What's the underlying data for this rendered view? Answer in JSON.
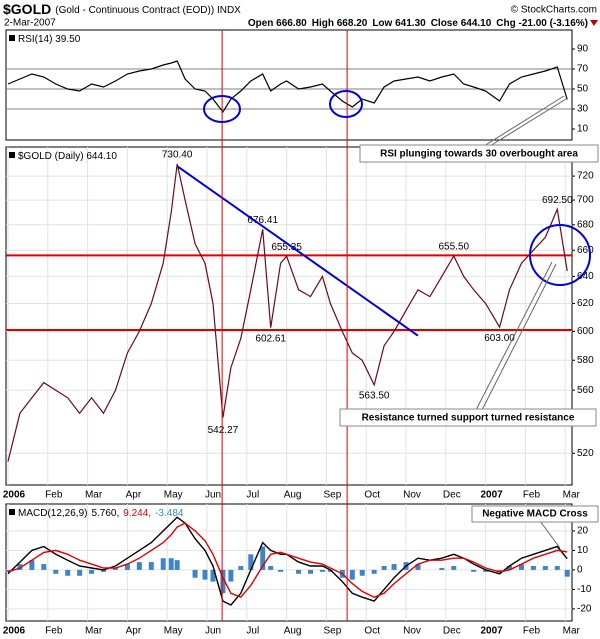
{
  "header": {
    "symbol": "$GOLD",
    "description": "(Gold - Continuous Contract (EOD)) INDX",
    "date": "2-Mar-2007",
    "quote": [
      "Open 666.80",
      "High 668.20",
      "Low 641.30",
      "Close 644.10",
      "Chg -21.00 (-3.16%)"
    ],
    "copyright": "© StockCharts.com"
  },
  "callouts": [
    "RSI plunging towards 30 overbought area",
    "Resistance turned support turned resistance",
    "Negative MACD Cross"
  ],
  "chart_data": [
    {
      "type": "line",
      "title": "RSI(14) 39.50",
      "color": "#000000",
      "x": [
        0.0,
        0.3,
        0.6,
        0.9,
        1.2,
        1.5,
        1.8,
        2.1,
        2.4,
        2.7,
        3.0,
        3.3,
        3.6,
        3.9,
        4.1,
        4.25,
        4.45,
        4.7,
        4.95,
        5.15,
        5.4,
        5.6,
        5.85,
        6.1,
        6.4,
        6.6,
        6.85,
        7.0,
        7.3,
        7.6,
        7.9,
        8.1,
        8.4,
        8.65,
        8.9,
        9.2,
        9.45,
        9.7,
        10.0,
        10.3,
        10.6,
        10.9,
        11.2,
        11.45,
        11.7,
        12.0,
        12.35,
        12.6,
        12.9,
        13.2,
        13.5,
        13.8,
        14.05
      ],
      "values": [
        55,
        60,
        65,
        62,
        55,
        50,
        48,
        55,
        52,
        58,
        65,
        68,
        70,
        74,
        76,
        78,
        60,
        50,
        48,
        40,
        27,
        40,
        48,
        58,
        65,
        48,
        55,
        58,
        50,
        52,
        55,
        48,
        38,
        32,
        40,
        36,
        52,
        58,
        60,
        62,
        58,
        62,
        65,
        55,
        52,
        48,
        38,
        55,
        62,
        65,
        68,
        72,
        39.5
      ],
      "xlim": [
        -0.05,
        14.17
      ],
      "ylim": [
        -1,
        109
      ],
      "yticks": [
        10,
        30,
        50,
        70,
        90
      ],
      "hlines": [
        70,
        50,
        30
      ],
      "hline_color": "#808080",
      "grid": false
    },
    {
      "type": "line",
      "title": "$GOLD (Daily) 644.10",
      "color": "#6b0a1a",
      "log": true,
      "x": [
        0.0,
        0.3,
        0.6,
        0.9,
        1.2,
        1.5,
        1.8,
        2.1,
        2.4,
        2.7,
        3.0,
        3.3,
        3.6,
        3.9,
        4.1,
        4.25,
        4.45,
        4.7,
        4.95,
        5.15,
        5.4,
        5.6,
        5.85,
        6.1,
        6.4,
        6.6,
        6.85,
        7.0,
        7.3,
        7.6,
        7.9,
        8.1,
        8.4,
        8.65,
        8.9,
        9.2,
        9.45,
        9.7,
        10.0,
        10.3,
        10.6,
        10.9,
        11.2,
        11.45,
        11.7,
        12.0,
        12.35,
        12.6,
        12.9,
        13.2,
        13.5,
        13.8,
        14.05
      ],
      "values": [
        515,
        545,
        555,
        565,
        560,
        555,
        545,
        555,
        545,
        560,
        585,
        600,
        620,
        650,
        690,
        730.4,
        700,
        665,
        650,
        620,
        542.27,
        575,
        595,
        630,
        676.41,
        602.61,
        650,
        655.35,
        630,
        625,
        640,
        620,
        600,
        585,
        580,
        563.5,
        590,
        600,
        615,
        630,
        625,
        640,
        655.5,
        640,
        630,
        620,
        603,
        630,
        650,
        660,
        670,
        692.5,
        644.1
      ],
      "price_labels": [
        {
          "x": 4.25,
          "value": 730.4,
          "label": "730.40"
        },
        {
          "x": 6.4,
          "value": 676.41,
          "label": "676.41"
        },
        {
          "x": 7.0,
          "value": 655.35,
          "label": "655.35"
        },
        {
          "x": 6.6,
          "value": 602.61,
          "label": "602.61"
        },
        {
          "x": 5.4,
          "value": 542.27,
          "label": "542.27"
        },
        {
          "x": 9.2,
          "value": 563.5,
          "label": "563.50"
        },
        {
          "x": 11.2,
          "value": 655.5,
          "label": "655.50"
        },
        {
          "x": 12.35,
          "value": 603,
          "label": "603.00"
        },
        {
          "x": 13.8,
          "value": 692.5,
          "label": "692.50"
        }
      ],
      "xlim": [
        -0.05,
        14.17
      ],
      "ylim": [
        501,
        745
      ],
      "yticks": [
        520,
        560,
        580,
        600,
        620,
        640,
        660,
        680,
        700,
        720
      ],
      "xticks": [
        {
          "value": 0,
          "label": "2006"
        },
        {
          "value": 1,
          "label": "Feb"
        },
        {
          "value": 2,
          "label": "Mar"
        },
        {
          "value": 3,
          "label": "Apr"
        },
        {
          "value": 4,
          "label": "May"
        },
        {
          "value": 5,
          "label": "Jun"
        },
        {
          "value": 6,
          "label": "Jul"
        },
        {
          "value": 7,
          "label": "Aug"
        },
        {
          "value": 8,
          "label": "Sep"
        },
        {
          "value": 9,
          "label": "Oct"
        },
        {
          "value": 10,
          "label": "Nov"
        },
        {
          "value": 11,
          "label": "Dec"
        },
        {
          "value": 12,
          "label": "2007"
        },
        {
          "value": 13,
          "label": "Feb"
        },
        {
          "value": 14,
          "label": "Mar"
        }
      ],
      "hlines": [
        656,
        601
      ],
      "hline_color": "#e00000",
      "vlines": [
        5.38,
        8.52
      ],
      "vline_color": "#e00000",
      "trendline": {
        "x": [
          4.27,
          10.3
        ],
        "values": [
          728,
          597
        ],
        "color": "#0000dd"
      },
      "grid": true
    },
    {
      "type": "line",
      "title": "MACD(12,26,9)",
      "x": [
        0.0,
        0.3,
        0.6,
        0.9,
        1.2,
        1.5,
        1.8,
        2.1,
        2.4,
        2.7,
        3.0,
        3.3,
        3.6,
        3.9,
        4.1,
        4.25,
        4.45,
        4.7,
        4.95,
        5.15,
        5.4,
        5.6,
        5.85,
        6.1,
        6.4,
        6.6,
        6.85,
        7.0,
        7.3,
        7.6,
        7.9,
        8.1,
        8.4,
        8.65,
        8.9,
        9.2,
        9.45,
        9.7,
        10.0,
        10.3,
        10.6,
        10.9,
        11.2,
        11.45,
        11.7,
        12.0,
        12.35,
        12.6,
        12.9,
        13.2,
        13.5,
        13.8,
        14.05
      ],
      "series": [
        {
          "name": "5.760,",
          "color": "#000000",
          "type": "line",
          "values": [
            -2,
            4,
            10,
            12,
            8,
            5,
            2,
            1,
            0,
            2,
            6,
            10,
            14,
            20,
            24,
            27,
            24,
            16,
            10,
            2,
            -16,
            -18,
            -12,
            0,
            14,
            10,
            8,
            8,
            4,
            2,
            2,
            0,
            -6,
            -12,
            -14,
            -16,
            -10,
            -4,
            2,
            6,
            5,
            6,
            8,
            6,
            3,
            0,
            -2,
            2,
            6,
            8,
            10,
            12,
            5.76
          ]
        },
        {
          "name": "9.244,",
          "color": "#e00000",
          "type": "line",
          "values": [
            -1,
            1,
            5,
            9,
            10,
            8,
            5,
            3,
            1,
            1,
            3,
            6,
            10,
            14,
            18,
            22,
            24,
            20,
            15,
            8,
            -4,
            -12,
            -14,
            -8,
            2,
            8,
            9,
            8,
            6,
            4,
            3,
            1,
            -2,
            -7,
            -11,
            -14,
            -12,
            -7,
            -2,
            3,
            5,
            5,
            6,
            6,
            4,
            1,
            -1,
            0,
            3,
            6,
            8,
            10,
            9.244
          ]
        },
        {
          "name": "-3.484",
          "color": "#3d85c6",
          "type": "bar",
          "values": [
            -1,
            3,
            5,
            3,
            -2,
            -3,
            -3,
            -2,
            -1,
            1,
            3,
            4,
            4,
            6,
            6,
            5,
            0,
            -4,
            -5,
            -6,
            -12,
            -6,
            2,
            8,
            12,
            2,
            -1,
            0,
            -2,
            -2,
            -1,
            -1,
            -4,
            -5,
            -3,
            -2,
            2,
            3,
            4,
            3,
            0,
            1,
            2,
            0,
            -1,
            -1,
            -1,
            2,
            3,
            2,
            2,
            2,
            -3.484
          ]
        }
      ],
      "xlim": [
        -0.05,
        14.17
      ],
      "ylim": [
        -26.2,
        33.8
      ],
      "yticks": [
        -20,
        -10,
        0,
        10,
        20
      ],
      "xticks": [
        {
          "value": 0,
          "label": "2006"
        },
        {
          "value": 1,
          "label": "Feb"
        },
        {
          "value": 2,
          "label": "Mar"
        },
        {
          "value": 3,
          "label": "Apr"
        },
        {
          "value": 4,
          "label": "May"
        },
        {
          "value": 5,
          "label": "Jun"
        },
        {
          "value": 6,
          "label": "Jul"
        },
        {
          "value": 7,
          "label": "Aug"
        },
        {
          "value": 8,
          "label": "Sep"
        },
        {
          "value": 9,
          "label": "Oct"
        },
        {
          "value": 10,
          "label": "Nov"
        },
        {
          "value": 11,
          "label": "Dec"
        },
        {
          "value": 12,
          "label": "2007"
        },
        {
          "value": 13,
          "label": "Feb"
        },
        {
          "value": 14,
          "label": "Mar"
        }
      ],
      "grid": true
    }
  ]
}
